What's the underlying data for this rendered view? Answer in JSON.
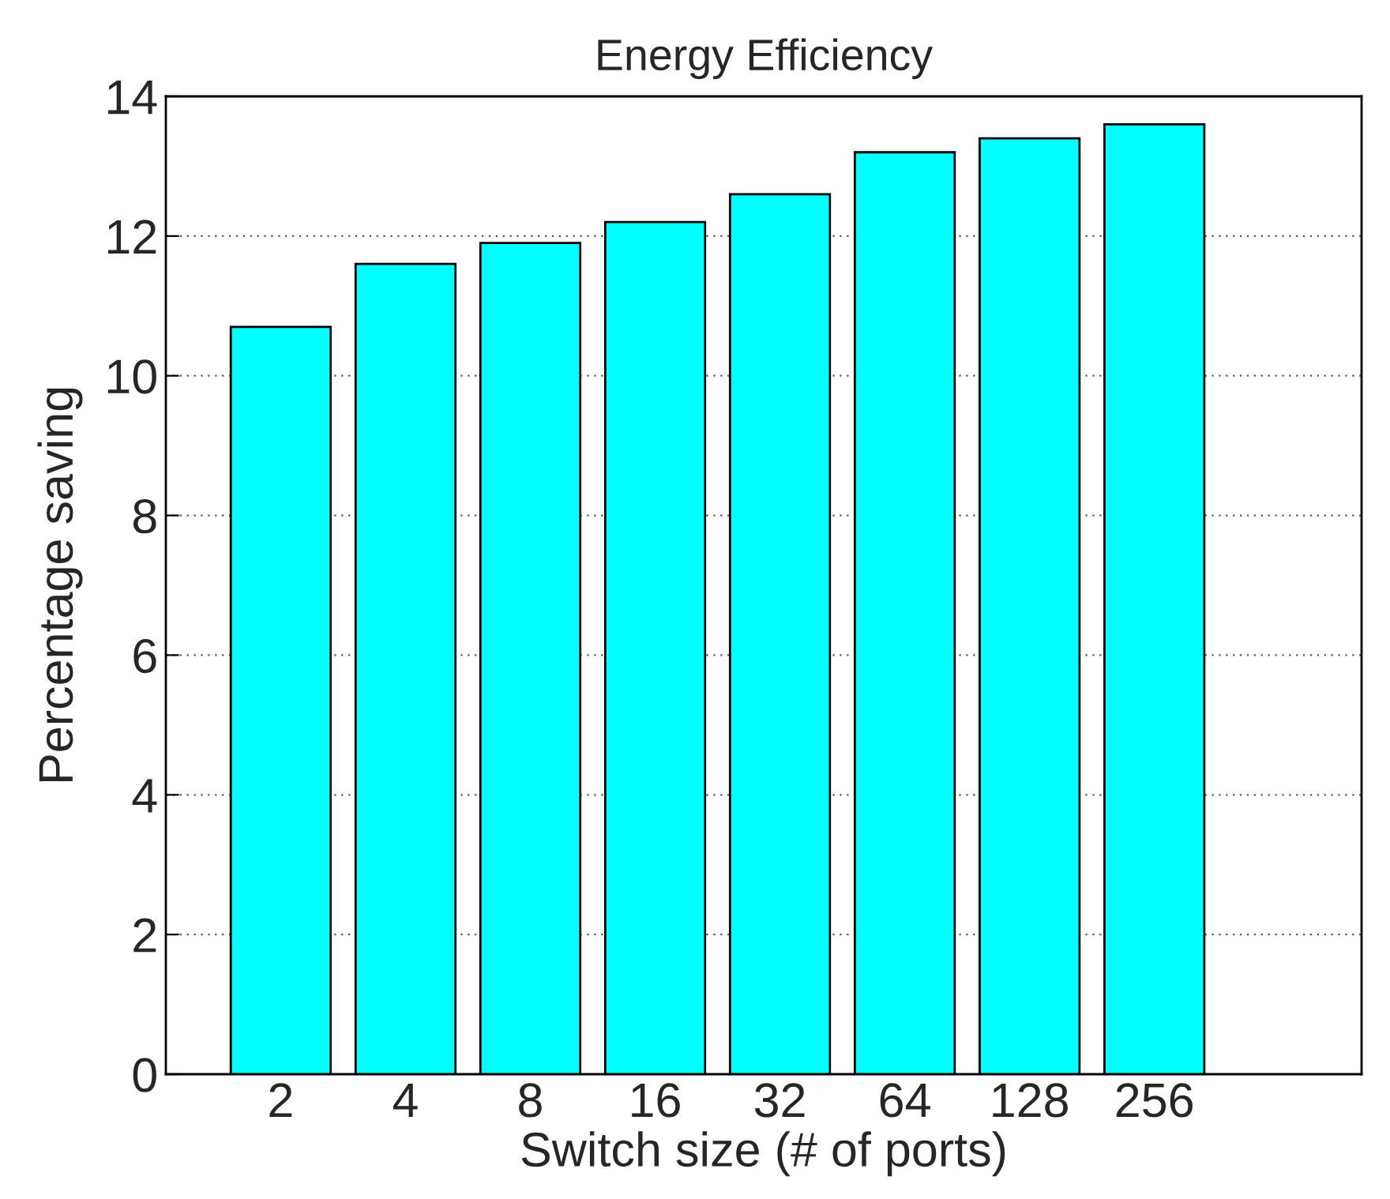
{
  "chart_data": {
    "type": "bar",
    "title": "Energy Efficiency",
    "xlabel": "Switch size (# of ports)",
    "ylabel": "Percentage saving",
    "categories": [
      "2",
      "4",
      "8",
      "16",
      "32",
      "64",
      "128",
      "256"
    ],
    "values": [
      10.7,
      11.6,
      11.9,
      12.2,
      12.6,
      13.2,
      13.4,
      13.6
    ],
    "color": "#00ffff",
    "ylim": [
      0,
      14
    ],
    "yticks": [
      0,
      2,
      4,
      6,
      8,
      10,
      12,
      14
    ],
    "grid": "y"
  }
}
